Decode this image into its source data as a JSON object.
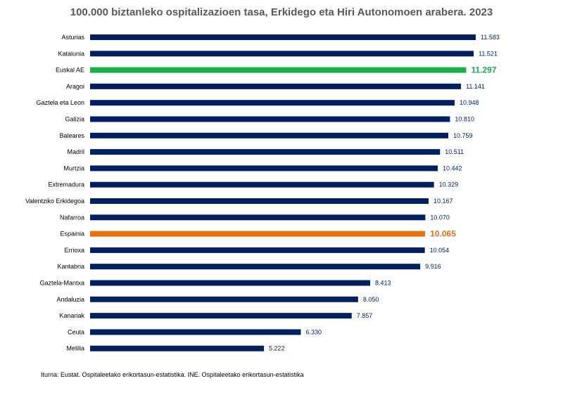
{
  "chart_data": {
    "type": "bar",
    "orientation": "horizontal",
    "title": "100.000 biztanleko ospitalizazioen tasa, Erkidego eta Hiri Autonomoen arabera. 2023",
    "categories": [
      "Asturias",
      "Katalunia",
      "Euskal AE",
      "Aragoi",
      "Gaztela eta Leon",
      "Galizia",
      "Baleares",
      "Madril",
      "Murtzia",
      "Extremadura",
      "Valentziko Erkidegoa",
      "Nafarroa",
      "Espainia",
      "Errioxa",
      "Kantabria",
      "Gaztela-Mantxa",
      "Andaluzia",
      "Kanariak",
      "Ceuta",
      "Melilla"
    ],
    "values": [
      11583,
      11521,
      11297,
      11141,
      10948,
      10810,
      10759,
      10511,
      10442,
      10329,
      10167,
      10070,
      10065,
      10054,
      9916,
      8413,
      8050,
      7857,
      6330,
      5222
    ],
    "value_labels": [
      "11.583",
      "11.521",
      "11.297",
      "11.141",
      "10.948",
      "10.810",
      "10.759",
      "10.511",
      "10.442",
      "10.329",
      "10.167",
      "10.070",
      "10.065",
      "10.054",
      "9.916",
      "8.413",
      "8.050",
      "7.857",
      "6.330",
      "5.222"
    ],
    "highlight": {
      "Euskal AE": "#1aaf4b",
      "Espainia": "#e8700e"
    },
    "default_color": "#002060",
    "xlim": [
      0,
      11583
    ],
    "grid": false,
    "legend": "none"
  },
  "source": "Iturria: Eustat. Ospitaleetako erikortasun-estatistika. INE. Ospitaleetako erikortasun-estatistika"
}
